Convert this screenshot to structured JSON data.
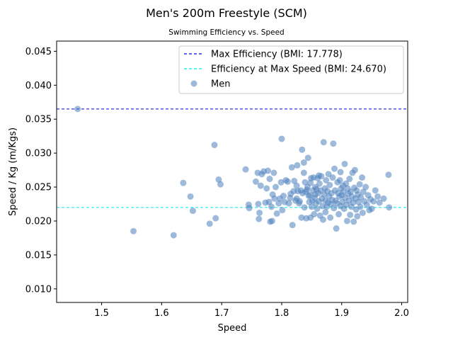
{
  "title": "Men's 200m Freestyle (SCM)",
  "subtitle": "Swimming Efficiency vs. Speed",
  "colors": {
    "points": "#4f81bd",
    "max_efficiency_line": "#0000dd",
    "max_speed_line": "#00e5e5"
  },
  "chart_data": {
    "type": "scatter",
    "title": "Men's 200m Freestyle (SCM)",
    "subtitle": "Swimming Efficiency vs. Speed",
    "xlabel": "Speed",
    "ylabel": "Speed / Kg (m/Kgs)",
    "xlim": [
      1.425,
      2.01
    ],
    "ylim": [
      0.008,
      0.0465
    ],
    "xticks": [
      "1.5",
      "1.6",
      "1.7",
      "1.8",
      "1.9",
      "2.0"
    ],
    "yticks": [
      "0.010",
      "0.015",
      "0.020",
      "0.025",
      "0.030",
      "0.035",
      "0.040",
      "0.045"
    ],
    "grid": false,
    "legend_position": "top-right",
    "hlines": [
      {
        "label": "Max Efficiency (BMI: 17.778)",
        "y": 0.0365,
        "style": "dashed",
        "color": "#0000dd"
      },
      {
        "label": "Efficiency at Max Speed (BMI: 24.670)",
        "y": 0.022,
        "style": "dashed",
        "color": "#00e5e5"
      }
    ],
    "series": [
      {
        "name": "Men",
        "points": [
          [
            1.46,
            0.0365
          ],
          [
            1.553,
            0.0185
          ],
          [
            1.62,
            0.0179
          ],
          [
            1.636,
            0.0256
          ],
          [
            1.648,
            0.0236
          ],
          [
            1.652,
            0.0215
          ],
          [
            1.68,
            0.0196
          ],
          [
            1.688,
            0.0312
          ],
          [
            1.69,
            0.0204
          ],
          [
            1.695,
            0.0261
          ],
          [
            1.698,
            0.0254
          ],
          [
            1.74,
            0.0276
          ],
          [
            1.745,
            0.0224
          ],
          [
            1.746,
            0.0219
          ],
          [
            1.757,
            0.0258
          ],
          [
            1.76,
            0.0271
          ],
          [
            1.761,
            0.0225
          ],
          [
            1.762,
            0.0203
          ],
          [
            1.763,
            0.0212
          ],
          [
            1.765,
            0.0252
          ],
          [
            1.767,
            0.0269
          ],
          [
            1.77,
            0.0273
          ],
          [
            1.773,
            0.0227
          ],
          [
            1.775,
            0.0248
          ],
          [
            1.777,
            0.0274
          ],
          [
            1.779,
            0.0228
          ],
          [
            1.78,
            0.0262
          ],
          [
            1.781,
            0.0199
          ],
          [
            1.783,
            0.0221
          ],
          [
            1.784,
            0.02
          ],
          [
            1.785,
            0.0239
          ],
          [
            1.787,
            0.0271
          ],
          [
            1.788,
            0.0233
          ],
          [
            1.79,
            0.025
          ],
          [
            1.792,
            0.0211
          ],
          [
            1.795,
            0.0226
          ],
          [
            1.797,
            0.0233
          ],
          [
            1.799,
            0.0257
          ],
          [
            1.8,
            0.0321
          ],
          [
            1.801,
            0.0216
          ],
          [
            1.803,
            0.0237
          ],
          [
            1.805,
            0.0228
          ],
          [
            1.807,
            0.026
          ],
          [
            1.81,
            0.0258
          ],
          [
            1.812,
            0.0226
          ],
          [
            1.814,
            0.0234
          ],
          [
            1.815,
            0.024
          ],
          [
            1.817,
            0.0279
          ],
          [
            1.818,
            0.0194
          ],
          [
            1.82,
            0.0244
          ],
          [
            1.821,
            0.0259
          ],
          [
            1.823,
            0.023
          ],
          [
            1.825,
            0.0233
          ],
          [
            1.826,
            0.0282
          ],
          [
            1.827,
            0.0244
          ],
          [
            1.829,
            0.0226
          ],
          [
            1.83,
            0.0229
          ],
          [
            1.832,
            0.0245
          ],
          [
            1.833,
            0.0205
          ],
          [
            1.834,
            0.0305
          ],
          [
            1.835,
            0.0241
          ],
          [
            1.837,
            0.0286
          ],
          [
            1.838,
            0.022
          ],
          [
            1.839,
            0.0257
          ],
          [
            1.84,
            0.0243
          ],
          [
            1.841,
            0.0204
          ],
          [
            1.842,
            0.0246
          ],
          [
            1.843,
            0.025
          ],
          [
            1.844,
            0.0293
          ],
          [
            1.845,
            0.0237
          ],
          [
            1.846,
            0.0228
          ],
          [
            1.847,
            0.0238
          ],
          [
            1.848,
            0.0205
          ],
          [
            1.849,
            0.0263
          ],
          [
            1.85,
            0.0221
          ],
          [
            1.851,
            0.023
          ],
          [
            1.852,
            0.0245
          ],
          [
            1.853,
            0.0264
          ],
          [
            1.854,
            0.021
          ],
          [
            1.855,
            0.0234
          ],
          [
            1.856,
            0.025
          ],
          [
            1.857,
            0.0226
          ],
          [
            1.858,
            0.0247
          ],
          [
            1.859,
            0.0218
          ],
          [
            1.86,
            0.0263
          ],
          [
            1.861,
            0.0241
          ],
          [
            1.862,
            0.0229
          ],
          [
            1.863,
            0.0255
          ],
          [
            1.864,
            0.0208
          ],
          [
            1.865,
            0.0245
          ],
          [
            1.866,
            0.0266
          ],
          [
            1.867,
            0.0233
          ],
          [
            1.868,
            0.0222
          ],
          [
            1.869,
            0.0202
          ],
          [
            1.87,
            0.0316
          ],
          [
            1.871,
            0.0239
          ],
          [
            1.872,
            0.0248
          ],
          [
            1.873,
            0.023
          ],
          [
            1.874,
            0.026
          ],
          [
            1.875,
            0.0221
          ],
          [
            1.876,
            0.0244
          ],
          [
            1.877,
            0.0227
          ],
          [
            1.878,
            0.0269
          ],
          [
            1.879,
            0.0236
          ],
          [
            1.88,
            0.0253
          ],
          [
            1.881,
            0.0205
          ],
          [
            1.882,
            0.0225
          ],
          [
            1.883,
            0.0241
          ],
          [
            1.884,
            0.0231
          ],
          [
            1.885,
            0.0264
          ],
          [
            1.886,
            0.0314
          ],
          [
            1.887,
            0.0219
          ],
          [
            1.888,
            0.0277
          ],
          [
            1.889,
            0.0245
          ],
          [
            1.89,
            0.023
          ],
          [
            1.891,
            0.0189
          ],
          [
            1.892,
            0.0226
          ],
          [
            1.893,
            0.0257
          ],
          [
            1.894,
            0.0241
          ],
          [
            1.895,
            0.021
          ],
          [
            1.896,
            0.0236
          ],
          [
            1.897,
            0.026
          ],
          [
            1.898,
            0.0222
          ],
          [
            1.899,
            0.0248
          ],
          [
            1.9,
            0.0238
          ],
          [
            1.901,
            0.0228
          ],
          [
            1.902,
            0.0252
          ],
          [
            1.903,
            0.0243
          ],
          [
            1.904,
            0.0218
          ],
          [
            1.905,
            0.0284
          ],
          [
            1.906,
            0.0234
          ],
          [
            1.907,
            0.0255
          ],
          [
            1.908,
            0.0224
          ],
          [
            1.909,
            0.02
          ],
          [
            1.91,
            0.0248
          ],
          [
            1.911,
            0.024
          ],
          [
            1.912,
            0.023
          ],
          [
            1.913,
            0.0262
          ],
          [
            1.914,
            0.0209
          ],
          [
            1.915,
            0.0243
          ],
          [
            1.916,
            0.0221
          ],
          [
            1.917,
            0.0236
          ],
          [
            1.918,
            0.0271
          ],
          [
            1.919,
            0.0227
          ],
          [
            1.92,
            0.0199
          ],
          [
            1.921,
            0.0249
          ],
          [
            1.922,
            0.0275
          ],
          [
            1.923,
            0.0233
          ],
          [
            1.924,
            0.0217
          ],
          [
            1.925,
            0.0245
          ],
          [
            1.926,
            0.0207
          ],
          [
            1.927,
            0.0239
          ],
          [
            1.928,
            0.0228
          ],
          [
            1.93,
            0.0254
          ],
          [
            1.931,
            0.0221
          ],
          [
            1.932,
            0.0235
          ],
          [
            1.934,
            0.0264
          ],
          [
            1.935,
            0.0212
          ],
          [
            1.936,
            0.0243
          ],
          [
            1.938,
            0.0229
          ],
          [
            1.94,
            0.025
          ],
          [
            1.942,
            0.0224
          ],
          [
            1.944,
            0.0238
          ],
          [
            1.946,
            0.0216
          ],
          [
            1.948,
            0.0232
          ],
          [
            1.95,
            0.0218
          ],
          [
            1.953,
            0.0229
          ],
          [
            1.956,
            0.0245
          ],
          [
            1.96,
            0.0236
          ],
          [
            1.963,
            0.0227
          ],
          [
            1.97,
            0.0233
          ],
          [
            1.978,
            0.0268
          ],
          [
            1.979,
            0.022
          ],
          [
            1.837,
            0.0271
          ],
          [
            1.862,
            0.0267
          ],
          [
            1.848,
            0.0256
          ],
          [
            1.898,
            0.0272
          ],
          [
            1.825,
            0.0252
          ],
          [
            1.873,
            0.0213
          ],
          [
            1.856,
            0.0239
          ]
        ]
      }
    ]
  }
}
